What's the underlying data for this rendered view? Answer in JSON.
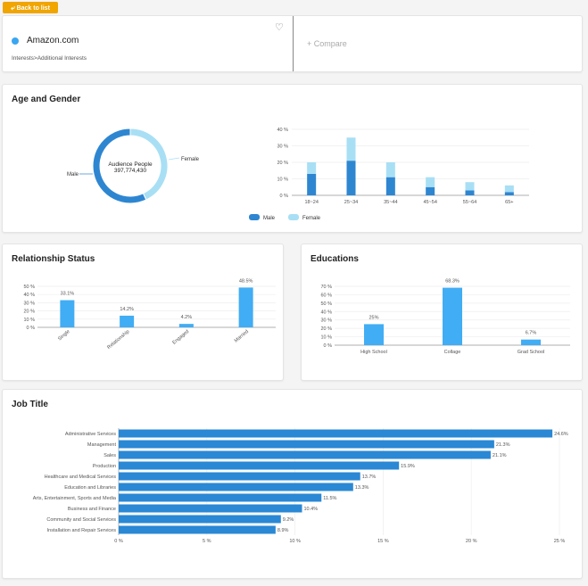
{
  "nav": {
    "back_label": "Back to list"
  },
  "site": {
    "name": "Amazon.com",
    "breadcrumb": "Interests>Additional Interests",
    "compare_label": "+ Compare"
  },
  "colors": {
    "male": "#2e86d1",
    "female": "#a8dff5",
    "bar": "#41adf4",
    "bar_dark": "#2a88d4",
    "accent": "#f0a500"
  },
  "icons": {
    "back": "arrow-left-icon",
    "heart": "heart-icon"
  },
  "age_gender": {
    "title": "Age and Gender",
    "donut_center_label": "Audience People",
    "donut_center_value": "397,774,430",
    "donut_labels": [
      "Male",
      "Female"
    ],
    "legend": [
      "Male",
      "Female"
    ]
  },
  "relationship": {
    "title": "Relationship Status"
  },
  "educations": {
    "title": "Educations"
  },
  "job": {
    "title": "Job Title"
  },
  "chart_data": [
    {
      "type": "pie",
      "id": "gender-donut",
      "labels": [
        "Male",
        "Female"
      ],
      "values": [
        57,
        43
      ]
    },
    {
      "type": "bar",
      "id": "age-stacked",
      "stacked": true,
      "categories": [
        "18~24",
        "25~34",
        "35~44",
        "45~54",
        "55~64",
        "65+"
      ],
      "series": [
        {
          "name": "Male",
          "values": [
            13,
            21,
            11,
            5,
            3,
            2
          ]
        },
        {
          "name": "Female",
          "values": [
            7,
            14,
            9,
            6,
            5,
            4
          ]
        }
      ],
      "yticks": [
        "0 %",
        "10 %",
        "20 %",
        "30 %",
        "40 %"
      ],
      "ylim": [
        0,
        40
      ],
      "legend": "bottom"
    },
    {
      "type": "bar",
      "id": "relationship-bar",
      "categories": [
        "Single",
        "Relationship",
        "Engaged",
        "Married"
      ],
      "values": [
        33.1,
        14.2,
        4.2,
        48.5
      ],
      "value_labels": [
        "33.1%",
        "14.2%",
        "4.2%",
        "48.5%"
      ],
      "yticks": [
        "0 %",
        "10 %",
        "20 %",
        "30 %",
        "40 %",
        "50 %"
      ],
      "ylim": [
        0,
        50
      ]
    },
    {
      "type": "bar",
      "id": "education-bar",
      "categories": [
        "High School",
        "Collage",
        "Grad School"
      ],
      "values": [
        25,
        68.3,
        6.7
      ],
      "value_labels": [
        "25%",
        "68.3%",
        "6.7%"
      ],
      "yticks": [
        "0 %",
        "10 %",
        "20 %",
        "30 %",
        "40 %",
        "50 %",
        "60 %",
        "70 %"
      ],
      "ylim": [
        0,
        70
      ]
    },
    {
      "type": "bar",
      "id": "job-bar",
      "orientation": "horizontal",
      "categories": [
        "Administrative Services",
        "Management",
        "Sales",
        "Production",
        "Healthcare and Medical Services",
        "Education and Libraries",
        "Arts, Entertainment, Sports and Media",
        "Business and Finance",
        "Community and Social Services",
        "Installation and Repair Services"
      ],
      "values": [
        24.6,
        21.3,
        21.1,
        15.9,
        13.7,
        13.3,
        11.5,
        10.4,
        9.2,
        8.9
      ],
      "value_labels": [
        "24.6%",
        "21.3%",
        "21.1%",
        "15.9%",
        "13.7%",
        "13.3%",
        "11.5%",
        "10.4%",
        "9.2%",
        "8.9%"
      ],
      "xticks": [
        "0 %",
        "5 %",
        "10 %",
        "15 %",
        "20 %",
        "25 %"
      ],
      "xlim": [
        0,
        25
      ]
    }
  ]
}
